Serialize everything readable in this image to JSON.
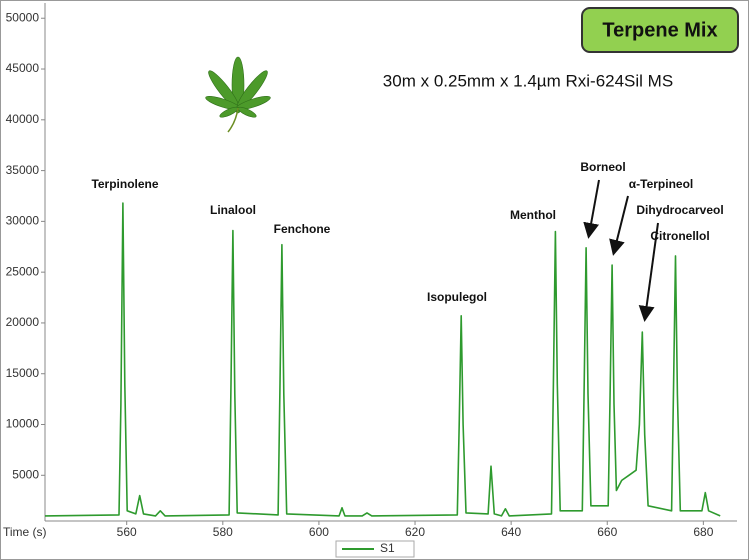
{
  "chart_data": {
    "type": "line",
    "title": "Terpene Mix",
    "subtitle": "30m x 0.25mm x 1.4µm Rxi-624Sil MS",
    "x_label": "Time (s)",
    "annotations": [
      "Terpinolene",
      "Linalool",
      "Fenchone",
      "Isopulegol",
      "Menthol",
      "Borneol",
      "α-Terpineol",
      "Dihydrocarveol",
      "Citronellol"
    ],
    "x": [
      543,
      558.4,
      558.8,
      559.2,
      559.6,
      560.1,
      561.9,
      562.7,
      563.5,
      566,
      567,
      568,
      581.3,
      581.7,
      582.1,
      582.5,
      583.0,
      591.5,
      591.9,
      592.3,
      592.7,
      593.3,
      604.2,
      604.8,
      605.4,
      609,
      610,
      611,
      628.8,
      629.2,
      629.6,
      630.0,
      630.6,
      635.2,
      635.8,
      636.5,
      638,
      638.8,
      639.6,
      648.4,
      648.8,
      649.2,
      649.6,
      650.2,
      654.8,
      655.2,
      655.6,
      656.0,
      656.6,
      660.2,
      660.6,
      661.0,
      661.4,
      661.9,
      663,
      664.5,
      666,
      666.7,
      667.3,
      667.8,
      668.5,
      673.4,
      673.8,
      674.2,
      674.6,
      675.2,
      679.7,
      680.4,
      681.1,
      683.5
    ],
    "series": [
      {
        "name": "S1",
        "color": "#2e9a2e",
        "values": [
          1000,
          1100,
          12000,
          31800,
          14000,
          1500,
          1200,
          3000,
          1200,
          1000,
          1500,
          1000,
          1100,
          14000,
          29100,
          13000,
          1300,
          1100,
          14000,
          27700,
          13000,
          1200,
          1000,
          1800,
          1000,
          1000,
          1300,
          1000,
          1100,
          10000,
          20700,
          10000,
          1300,
          1200,
          5900,
          1200,
          1000,
          1700,
          1000,
          1200,
          14000,
          29000,
          14000,
          1500,
          1500,
          14000,
          27400,
          13000,
          2000,
          2000,
          13000,
          25700,
          12000,
          3500,
          4500,
          5000,
          5500,
          10000,
          19100,
          9000,
          2000,
          1500,
          14000,
          26600,
          13000,
          1500,
          1500,
          3300,
          1500,
          1000
        ]
      }
    ],
    "xlim": [
      543,
      687
    ],
    "xticks": [
      560,
      580,
      600,
      620,
      640,
      660,
      680
    ],
    "ylim": [
      500,
      51500
    ],
    "yticks": [
      5000,
      10000,
      15000,
      20000,
      25000,
      30000,
      35000,
      40000,
      45000,
      50000
    ]
  }
}
